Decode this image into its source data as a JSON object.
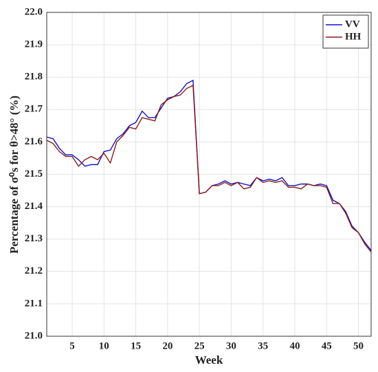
{
  "chart_data": {
    "type": "line",
    "x_label": "Week",
    "y_label": "Percentage of σ⁰s for θ>48° (%)",
    "x": [
      1,
      2,
      3,
      4,
      5,
      6,
      7,
      8,
      9,
      10,
      11,
      12,
      13,
      14,
      15,
      16,
      17,
      18,
      19,
      20,
      21,
      22,
      23,
      24,
      25,
      26,
      27,
      28,
      29,
      30,
      31,
      32,
      33,
      34,
      35,
      36,
      37,
      38,
      39,
      40,
      41,
      42,
      43,
      44,
      45,
      46,
      47,
      48,
      49,
      50,
      51,
      52
    ],
    "series": [
      {
        "name": "VV",
        "color": "#1010c8",
        "values": [
          21.615,
          21.61,
          21.58,
          21.56,
          21.56,
          21.545,
          21.525,
          21.53,
          21.53,
          21.57,
          21.575,
          21.61,
          21.625,
          21.65,
          21.66,
          21.695,
          21.675,
          21.675,
          21.705,
          21.735,
          21.74,
          21.755,
          21.78,
          21.79,
          21.44,
          21.445,
          21.465,
          21.47,
          21.48,
          21.47,
          21.475,
          21.47,
          21.465,
          21.49,
          21.48,
          21.485,
          21.48,
          21.49,
          21.465,
          21.465,
          21.47,
          21.47,
          21.465,
          21.47,
          21.465,
          21.42,
          21.41,
          21.385,
          21.34,
          21.32,
          21.29,
          21.265
        ]
      },
      {
        "name": "HH",
        "color": "#8b1a1a",
        "values": [
          21.605,
          21.595,
          21.57,
          21.555,
          21.555,
          21.525,
          21.545,
          21.555,
          21.545,
          21.565,
          21.535,
          21.6,
          21.62,
          21.645,
          21.64,
          21.675,
          21.67,
          21.665,
          21.715,
          21.73,
          21.74,
          21.745,
          21.765,
          21.775,
          21.44,
          21.445,
          21.465,
          21.465,
          21.475,
          21.465,
          21.475,
          21.455,
          21.46,
          21.49,
          21.475,
          21.48,
          21.475,
          21.48,
          21.46,
          21.46,
          21.455,
          21.47,
          21.465,
          21.465,
          21.46,
          21.41,
          21.41,
          21.38,
          21.335,
          21.32,
          21.285,
          21.26
        ]
      }
    ],
    "xlim": [
      1,
      52
    ],
    "xticks": [
      5,
      10,
      15,
      20,
      25,
      30,
      35,
      40,
      45,
      50
    ],
    "ylim": [
      21,
      22
    ],
    "yticks": [
      {
        "value": 21,
        "label": "21.0"
      },
      21.1,
      21.2,
      21.3,
      21.4,
      21.5,
      21.6,
      21.7,
      21.8,
      21.9,
      {
        "value": 22,
        "label": "22.0"
      }
    ],
    "grid": true,
    "legend": "upper-right"
  }
}
